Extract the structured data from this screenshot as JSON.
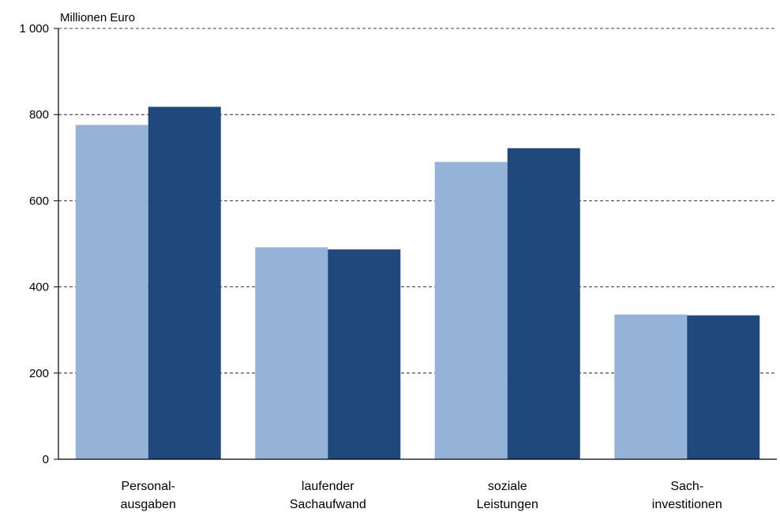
{
  "chart_data": {
    "type": "bar",
    "ylabel": "Millionen Euro",
    "ylim": [
      0,
      1000
    ],
    "yticks": [
      0,
      200,
      400,
      600,
      800,
      1000
    ],
    "ytick_labels": [
      "0",
      "200",
      "400",
      "600",
      "800",
      "1 000"
    ],
    "grid": "horizontal dashed",
    "categories": [
      [
        "Personal-",
        "ausgaben"
      ],
      [
        "laufender",
        "Sachaufwand"
      ],
      [
        "soziale",
        "Leistungen"
      ],
      [
        "Sach-",
        "investitionen"
      ]
    ],
    "series": [
      {
        "color": "#95b3d7",
        "values": [
          776,
          492,
          690,
          336
        ]
      },
      {
        "color": "#1f497d",
        "values": [
          818,
          487,
          722,
          334
        ]
      }
    ]
  }
}
